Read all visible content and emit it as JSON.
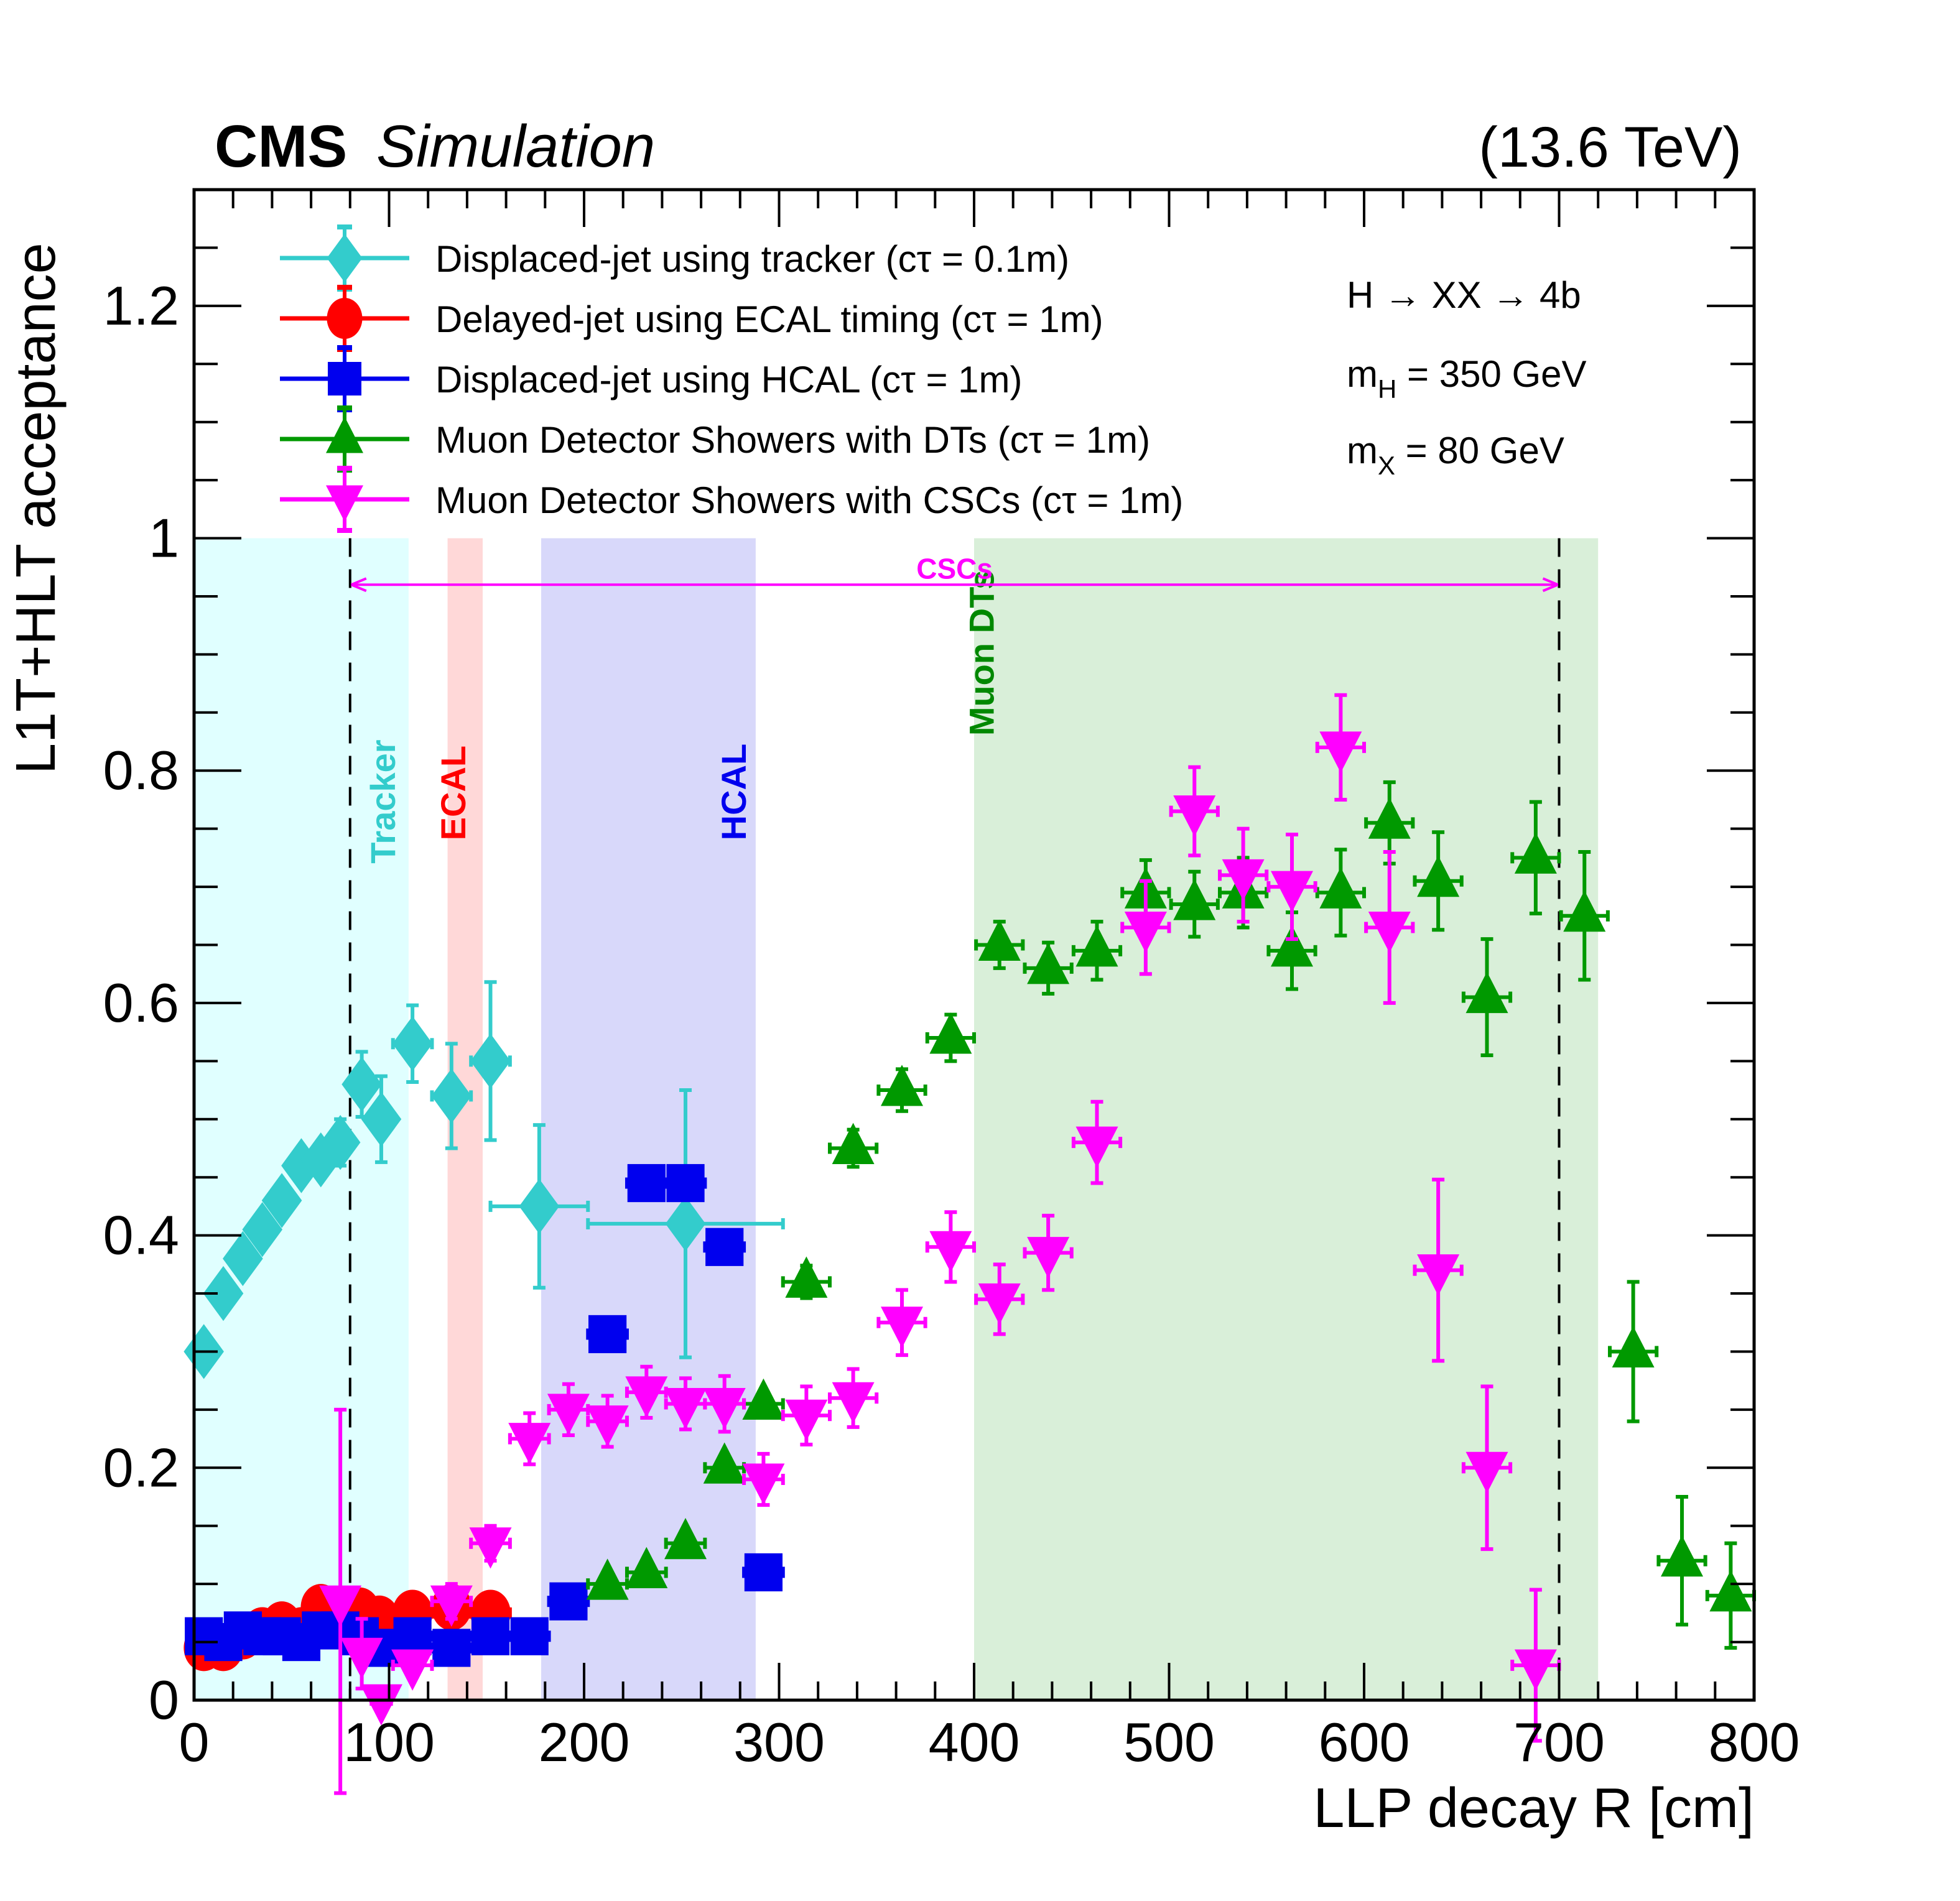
{
  "chart_data": {
    "type": "scatter",
    "title": "CMS Simulation",
    "title_bold": "CMS",
    "title_italic": "Simulation",
    "energy_label": "(13.6 TeV)",
    "xlabel": "LLP decay R [cm]",
    "ylabel": "L1T+HLT acceptance",
    "xlim": [
      0,
      800
    ],
    "ylim": [
      0,
      1.3
    ],
    "xticks": [
      0,
      100,
      200,
      300,
      400,
      500,
      600,
      700,
      800
    ],
    "xtick_labels": [
      "0",
      "100",
      "200",
      "300",
      "400",
      "500",
      "600",
      "700",
      "800"
    ],
    "yticks": [
      0,
      0.2,
      0.4,
      0.6,
      0.8,
      1.0,
      1.2
    ],
    "ytick_labels": [
      "0",
      "0.2",
      "0.4",
      "0.6",
      "0.8",
      "1",
      "1.2"
    ],
    "legend_position": "top-left",
    "annotations": {
      "process": "H → XX → 4b",
      "mH": {
        "base": "m",
        "sub": "H",
        "rest": " = 350 GeV"
      },
      "mX": {
        "base": "m",
        "sub": "X",
        "rest": " = 80 GeV"
      }
    },
    "regions": [
      {
        "name": "Tracker",
        "x": [
          0,
          110
        ],
        "y_top": 1.0,
        "color": "#e0ffff",
        "label_color": "#33cccc",
        "label_R": 103,
        "label_y": 0.72
      },
      {
        "name": "ECAL",
        "x": [
          130,
          148
        ],
        "y_top": 1.0,
        "color": "#ffd8d8",
        "label_color": "#ff0000",
        "label_R": 139,
        "label_y": 0.74
      },
      {
        "name": "HCAL",
        "x": [
          178,
          288
        ],
        "y_top": 1.0,
        "color": "#d8d8fa",
        "label_color": "#0000ee",
        "label_R": 283,
        "label_y": 0.74
      },
      {
        "name": "Muon DTs",
        "x": [
          400,
          720
        ],
        "y_top": 1.0,
        "color": "#d9efd9",
        "label_color": "#008800",
        "label_R": 410,
        "label_y": 0.83
      }
    ],
    "csc_range": {
      "label": "CSCs",
      "x": [
        80,
        700
      ],
      "y": 0.96,
      "color": "#ff00ff"
    },
    "series": [
      {
        "name": "Displaced-jet using tracker (cτ = 0.1m)",
        "color": "#33cccc",
        "marker": "diamond",
        "points": [
          {
            "x": 5,
            "y": 0.3,
            "xerr": 0,
            "yerr": 0.005
          },
          {
            "x": 15,
            "y": 0.35,
            "xerr": 0,
            "yerr": 0.005
          },
          {
            "x": 25,
            "y": 0.38,
            "xerr": 0,
            "yerr": 0.005
          },
          {
            "x": 35,
            "y": 0.405,
            "xerr": 0,
            "yerr": 0.006
          },
          {
            "x": 45,
            "y": 0.43,
            "xerr": 0,
            "yerr": 0.008
          },
          {
            "x": 55,
            "y": 0.46,
            "xerr": 0,
            "yerr": 0.01
          },
          {
            "x": 65,
            "y": 0.465,
            "xerr": 0,
            "yerr": 0.012
          },
          {
            "x": 75,
            "y": 0.48,
            "xerr": 5,
            "yerr": 0.02
          },
          {
            "x": 86,
            "y": 0.53,
            "xerr": 5,
            "yerr": 0.028
          },
          {
            "x": 96,
            "y": 0.5,
            "xerr": 0,
            "yerr": 0.037
          },
          {
            "x": 112,
            "y": 0.565,
            "xerr": 10,
            "yerr": 0.033
          },
          {
            "x": 132,
            "y": 0.52,
            "xerr": 10,
            "yerr": 0.045
          },
          {
            "x": 152,
            "y": 0.55,
            "xerr": 10,
            "yerr": 0.068
          },
          {
            "x": 177,
            "y": 0.425,
            "xerr": 25,
            "yerr": 0.07
          },
          {
            "x": 252,
            "y": 0.41,
            "xerr": 50,
            "yerr": 0.115
          }
        ]
      },
      {
        "name": "Delayed-jet using ECAL timing (cτ = 1m)",
        "color": "#ff0000",
        "marker": "circle",
        "points": [
          {
            "x": 5,
            "y": 0.045,
            "xerr": 5,
            "yerr": 0.003
          },
          {
            "x": 15,
            "y": 0.045,
            "xerr": 5,
            "yerr": 0.003
          },
          {
            "x": 25,
            "y": 0.055,
            "xerr": 5,
            "yerr": 0.003
          },
          {
            "x": 35,
            "y": 0.06,
            "xerr": 5,
            "yerr": 0.003
          },
          {
            "x": 45,
            "y": 0.065,
            "xerr": 5,
            "yerr": 0.003
          },
          {
            "x": 55,
            "y": 0.06,
            "xerr": 5,
            "yerr": 0.003
          },
          {
            "x": 65,
            "y": 0.08,
            "xerr": 5,
            "yerr": 0.003
          },
          {
            "x": 75,
            "y": 0.075,
            "xerr": 5,
            "yerr": 0.003
          },
          {
            "x": 85,
            "y": 0.077,
            "xerr": 5,
            "yerr": 0.003
          },
          {
            "x": 95,
            "y": 0.07,
            "xerr": 5,
            "yerr": 0.003
          },
          {
            "x": 112,
            "y": 0.075,
            "xerr": 10,
            "yerr": 0.004
          },
          {
            "x": 132,
            "y": 0.08,
            "xerr": 10,
            "yerr": 0.004
          },
          {
            "x": 152,
            "y": 0.075,
            "xerr": 10,
            "yerr": 0.004
          }
        ]
      },
      {
        "name": "Displaced-jet using HCAL (cτ = 1m)",
        "color": "#0000ee",
        "marker": "square",
        "points": [
          {
            "x": 5,
            "y": 0.055,
            "xerr": 5,
            "yerr": 0.003
          },
          {
            "x": 15,
            "y": 0.05,
            "xerr": 5,
            "yerr": 0.003
          },
          {
            "x": 25,
            "y": 0.06,
            "xerr": 5,
            "yerr": 0.003
          },
          {
            "x": 35,
            "y": 0.055,
            "xerr": 5,
            "yerr": 0.003
          },
          {
            "x": 45,
            "y": 0.055,
            "xerr": 5,
            "yerr": 0.003
          },
          {
            "x": 55,
            "y": 0.05,
            "xerr": 5,
            "yerr": 0.003
          },
          {
            "x": 65,
            "y": 0.06,
            "xerr": 5,
            "yerr": 0.003
          },
          {
            "x": 75,
            "y": 0.06,
            "xerr": 5,
            "yerr": 0.003
          },
          {
            "x": 85,
            "y": 0.055,
            "xerr": 5,
            "yerr": 0.003
          },
          {
            "x": 95,
            "y": 0.045,
            "xerr": 5,
            "yerr": 0.003
          },
          {
            "x": 112,
            "y": 0.055,
            "xerr": 10,
            "yerr": 0.004
          },
          {
            "x": 132,
            "y": 0.045,
            "xerr": 10,
            "yerr": 0.004
          },
          {
            "x": 152,
            "y": 0.055,
            "xerr": 10,
            "yerr": 0.004
          },
          {
            "x": 172,
            "y": 0.055,
            "xerr": 10,
            "yerr": 0.004
          },
          {
            "x": 192,
            "y": 0.085,
            "xerr": 10,
            "yerr": 0.005
          },
          {
            "x": 212,
            "y": 0.315,
            "xerr": 10,
            "yerr": 0.008
          },
          {
            "x": 232,
            "y": 0.445,
            "xerr": 10,
            "yerr": 0.012
          },
          {
            "x": 252,
            "y": 0.445,
            "xerr": 10,
            "yerr": 0.012
          },
          {
            "x": 272,
            "y": 0.39,
            "xerr": 10,
            "yerr": 0.012
          },
          {
            "x": 292,
            "y": 0.11,
            "xerr": 10,
            "yerr": 0.006
          }
        ]
      },
      {
        "name": "Muon Detector Showers with DTs (cτ = 1m)",
        "color": "#009900",
        "marker": "triangle-up",
        "points": [
          {
            "x": 212,
            "y": 0.1,
            "xerr": 10,
            "yerr": 0.005
          },
          {
            "x": 232,
            "y": 0.11,
            "xerr": 10,
            "yerr": 0.005
          },
          {
            "x": 252,
            "y": 0.135,
            "xerr": 10,
            "yerr": 0.006
          },
          {
            "x": 272,
            "y": 0.2,
            "xerr": 10,
            "yerr": 0.008
          },
          {
            "x": 292,
            "y": 0.255,
            "xerr": 10,
            "yerr": 0.01
          },
          {
            "x": 314,
            "y": 0.36,
            "xerr": 12,
            "yerr": 0.014
          },
          {
            "x": 338,
            "y": 0.475,
            "xerr": 12,
            "yerr": 0.016
          },
          {
            "x": 363,
            "y": 0.525,
            "xerr": 12,
            "yerr": 0.018
          },
          {
            "x": 388,
            "y": 0.57,
            "xerr": 12,
            "yerr": 0.02
          },
          {
            "x": 413,
            "y": 0.65,
            "xerr": 12,
            "yerr": 0.02
          },
          {
            "x": 438,
            "y": 0.63,
            "xerr": 12,
            "yerr": 0.022
          },
          {
            "x": 463,
            "y": 0.645,
            "xerr": 12,
            "yerr": 0.025
          },
          {
            "x": 488,
            "y": 0.695,
            "xerr": 12,
            "yerr": 0.028
          },
          {
            "x": 513,
            "y": 0.685,
            "xerr": 12,
            "yerr": 0.028
          },
          {
            "x": 538,
            "y": 0.695,
            "xerr": 12,
            "yerr": 0.03
          },
          {
            "x": 563,
            "y": 0.645,
            "xerr": 12,
            "yerr": 0.033
          },
          {
            "x": 588,
            "y": 0.695,
            "xerr": 12,
            "yerr": 0.037
          },
          {
            "x": 613,
            "y": 0.755,
            "xerr": 12,
            "yerr": 0.035
          },
          {
            "x": 638,
            "y": 0.705,
            "xerr": 12,
            "yerr": 0.042
          },
          {
            "x": 663,
            "y": 0.605,
            "xerr": 12,
            "yerr": 0.05
          },
          {
            "x": 688,
            "y": 0.725,
            "xerr": 12,
            "yerr": 0.048
          },
          {
            "x": 713,
            "y": 0.675,
            "xerr": 12,
            "yerr": 0.055
          },
          {
            "x": 738,
            "y": 0.3,
            "xerr": 12,
            "yerr": 0.06
          },
          {
            "x": 763,
            "y": 0.12,
            "xerr": 12,
            "yerr": 0.055
          },
          {
            "x": 788,
            "y": 0.09,
            "xerr": 12,
            "yerr": 0.045
          }
        ]
      },
      {
        "name": "Muon Detector Showers with CSCs (cτ = 1m)",
        "color": "#ff00ff",
        "marker": "triangle-down",
        "points": [
          {
            "x": 75,
            "y": 0.085,
            "xerr": 0,
            "yerr": 0.165
          },
          {
            "x": 86,
            "y": 0.04,
            "xerr": 0,
            "yerr": 0.03
          },
          {
            "x": 96,
            "y": 0.0,
            "xerr": 5,
            "yerr": 0.01
          },
          {
            "x": 112,
            "y": 0.03,
            "xerr": 10,
            "yerr": 0.01
          },
          {
            "x": 132,
            "y": 0.085,
            "xerr": 10,
            "yerr": 0.015
          },
          {
            "x": 152,
            "y": 0.135,
            "xerr": 10,
            "yerr": 0.015
          },
          {
            "x": 172,
            "y": 0.225,
            "xerr": 10,
            "yerr": 0.022
          },
          {
            "x": 192,
            "y": 0.25,
            "xerr": 10,
            "yerr": 0.022
          },
          {
            "x": 212,
            "y": 0.24,
            "xerr": 10,
            "yerr": 0.022
          },
          {
            "x": 232,
            "y": 0.265,
            "xerr": 10,
            "yerr": 0.022
          },
          {
            "x": 252,
            "y": 0.255,
            "xerr": 10,
            "yerr": 0.022
          },
          {
            "x": 272,
            "y": 0.255,
            "xerr": 10,
            "yerr": 0.024
          },
          {
            "x": 292,
            "y": 0.19,
            "xerr": 10,
            "yerr": 0.022
          },
          {
            "x": 314,
            "y": 0.245,
            "xerr": 12,
            "yerr": 0.025
          },
          {
            "x": 338,
            "y": 0.26,
            "xerr": 12,
            "yerr": 0.025
          },
          {
            "x": 363,
            "y": 0.325,
            "xerr": 12,
            "yerr": 0.028
          },
          {
            "x": 388,
            "y": 0.39,
            "xerr": 12,
            "yerr": 0.03
          },
          {
            "x": 413,
            "y": 0.345,
            "xerr": 12,
            "yerr": 0.03
          },
          {
            "x": 438,
            "y": 0.385,
            "xerr": 12,
            "yerr": 0.032
          },
          {
            "x": 463,
            "y": 0.48,
            "xerr": 12,
            "yerr": 0.035
          },
          {
            "x": 488,
            "y": 0.665,
            "xerr": 12,
            "yerr": 0.04
          },
          {
            "x": 513,
            "y": 0.765,
            "xerr": 12,
            "yerr": 0.038
          },
          {
            "x": 538,
            "y": 0.71,
            "xerr": 12,
            "yerr": 0.04
          },
          {
            "x": 563,
            "y": 0.7,
            "xerr": 12,
            "yerr": 0.045
          },
          {
            "x": 588,
            "y": 0.82,
            "xerr": 12,
            "yerr": 0.045
          },
          {
            "x": 613,
            "y": 0.665,
            "xerr": 12,
            "yerr": 0.065
          },
          {
            "x": 638,
            "y": 0.37,
            "xerr": 12,
            "yerr": 0.078
          },
          {
            "x": 663,
            "y": 0.2,
            "xerr": 12,
            "yerr": 0.07
          },
          {
            "x": 688,
            "y": 0.03,
            "xerr": 12,
            "yerr": 0.065
          }
        ]
      }
    ]
  }
}
